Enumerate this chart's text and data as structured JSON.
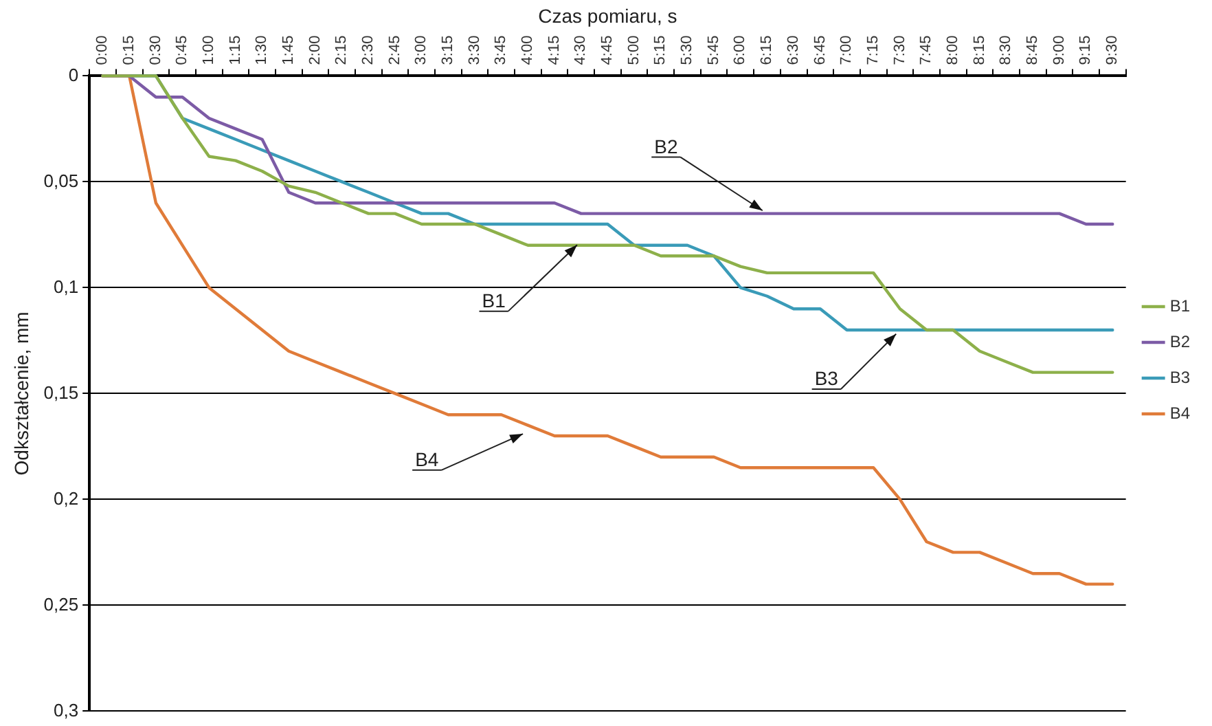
{
  "chart_data": {
    "type": "line",
    "xlabel": "Czas pomiaru, s",
    "ylabel": "Odkształcenie, mm",
    "categories": [
      "0:00",
      "0:15",
      "0:30",
      "0:45",
      "1:00",
      "1:15",
      "1:30",
      "1:45",
      "2:00",
      "2:15",
      "2:30",
      "2:45",
      "3:00",
      "3:15",
      "3:30",
      "3:45",
      "4:00",
      "4:15",
      "4:30",
      "4:45",
      "5:00",
      "5:15",
      "5:30",
      "5:45",
      "6:00",
      "6:15",
      "6:30",
      "6:45",
      "7:00",
      "7:15",
      "7:30",
      "7:45",
      "8:00",
      "8:15",
      "8:30",
      "8:45",
      "9:00",
      "9:15",
      "9:30"
    ],
    "series": [
      {
        "name": "B1",
        "color": "#8db04a",
        "values": [
          0,
          0,
          0,
          0.02,
          0.038,
          0.04,
          0.045,
          0.052,
          0.055,
          0.06,
          0.065,
          0.065,
          0.07,
          0.07,
          0.07,
          0.075,
          0.08,
          0.08,
          0.08,
          0.08,
          0.08,
          0.085,
          0.085,
          0.085,
          0.09,
          0.093,
          0.093,
          0.093,
          0.093,
          0.093,
          0.11,
          0.12,
          0.12,
          0.13,
          0.135,
          0.14,
          0.14,
          0.14,
          0.14
        ]
      },
      {
        "name": "B2",
        "color": "#7c5ba6",
        "values": [
          0,
          0,
          0.01,
          0.01,
          0.02,
          0.025,
          0.03,
          0.055,
          0.06,
          0.06,
          0.06,
          0.06,
          0.06,
          0.06,
          0.06,
          0.06,
          0.06,
          0.06,
          0.065,
          0.065,
          0.065,
          0.065,
          0.065,
          0.065,
          0.065,
          0.065,
          0.065,
          0.065,
          0.065,
          0.065,
          0.065,
          0.065,
          0.065,
          0.065,
          0.065,
          0.065,
          0.065,
          0.07,
          0.07
        ]
      },
      {
        "name": "B3",
        "color": "#3a9bb8",
        "values": [
          null,
          0,
          0,
          0.02,
          0.025,
          0.03,
          0.035,
          0.04,
          0.045,
          0.05,
          0.055,
          0.06,
          0.065,
          0.065,
          0.07,
          0.07,
          0.07,
          0.07,
          0.07,
          0.07,
          0.08,
          0.08,
          0.08,
          0.085,
          0.1,
          0.104,
          0.11,
          0.11,
          0.12,
          0.12,
          0.12,
          0.12,
          0.12,
          0.12,
          0.12,
          0.12,
          0.12,
          0.12,
          0.12
        ]
      },
      {
        "name": "B4",
        "color": "#e07b39",
        "values": [
          0,
          0,
          0.06,
          0.08,
          0.1,
          0.11,
          0.12,
          0.13,
          0.135,
          0.14,
          0.145,
          0.15,
          0.155,
          0.16,
          0.16,
          0.16,
          0.165,
          0.17,
          0.17,
          0.17,
          0.175,
          0.18,
          0.18,
          0.18,
          0.185,
          0.185,
          0.185,
          0.185,
          0.185,
          0.185,
          0.2,
          0.22,
          0.225,
          0.225,
          0.23,
          0.235,
          0.235,
          0.24,
          0.24
        ]
      }
    ],
    "ylim": [
      0.3,
      0
    ],
    "yticks": [
      0,
      {
        "value": 0.05,
        "label": "0,05"
      },
      {
        "value": 0.1,
        "label": "0,1"
      },
      {
        "value": 0.15,
        "label": "0,15"
      },
      {
        "value": 0.2,
        "label": "0,2"
      },
      {
        "value": 0.25,
        "label": "0,25"
      },
      {
        "value": 0.3,
        "label": "0,3"
      }
    ],
    "grid": "y",
    "legend": "right",
    "marker": "none",
    "line_style": "solid",
    "annotations": [
      {
        "text": "B1",
        "x": "4:30",
        "y": 0.078
      },
      {
        "text": "B2",
        "x": "6:15",
        "y": 0.065
      },
      {
        "text": "B3",
        "x": "7:30",
        "y": 0.12
      },
      {
        "text": "B4",
        "x": "4:00",
        "y": 0.168
      }
    ]
  }
}
